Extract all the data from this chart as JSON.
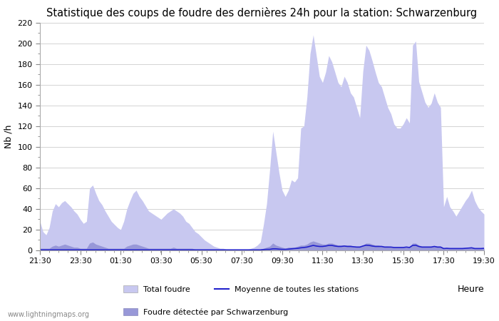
{
  "title": "Statistique des coups de foudre des dernières 24h pour la station: Schwarzenburg",
  "ylabel": "Nb /h",
  "xlabel_right": "Heure",
  "watermark": "www.lightningmaps.org",
  "ylim": [
    0,
    220
  ],
  "yticks_major": [
    0,
    20,
    40,
    60,
    80,
    100,
    120,
    140,
    160,
    180,
    200,
    220
  ],
  "xtick_labels": [
    "21:30",
    "23:30",
    "01:30",
    "03:30",
    "05:30",
    "07:30",
    "09:30",
    "11:30",
    "13:30",
    "15:30",
    "17:30",
    "19:30"
  ],
  "color_total": "#c8c8f0",
  "color_station": "#9898d8",
  "color_moyenne": "#2222cc",
  "legend_total": "Total foudre",
  "legend_moyenne": "Moyenne de toutes les stations",
  "legend_station": "Foudre détectée par Schwarzenburg",
  "title_fontsize": 10.5,
  "n_points": 144,
  "total_foudre": [
    28,
    18,
    15,
    22,
    38,
    45,
    42,
    46,
    48,
    45,
    42,
    38,
    35,
    30,
    26,
    28,
    60,
    63,
    55,
    48,
    44,
    38,
    33,
    28,
    25,
    22,
    20,
    28,
    40,
    48,
    55,
    58,
    52,
    48,
    43,
    38,
    36,
    34,
    32,
    30,
    33,
    36,
    38,
    40,
    38,
    36,
    33,
    28,
    26,
    22,
    18,
    16,
    13,
    10,
    8,
    6,
    4,
    3,
    2,
    2,
    1,
    1,
    1,
    1,
    1,
    1,
    1,
    1,
    2,
    3,
    5,
    8,
    25,
    45,
    78,
    115,
    95,
    75,
    58,
    52,
    58,
    68,
    66,
    70,
    118,
    120,
    148,
    190,
    208,
    188,
    168,
    162,
    172,
    188,
    182,
    172,
    162,
    158,
    168,
    162,
    152,
    148,
    138,
    128,
    173,
    198,
    193,
    183,
    172,
    162,
    158,
    148,
    138,
    132,
    122,
    118,
    118,
    122,
    128,
    123,
    198,
    202,
    163,
    153,
    143,
    138,
    142,
    152,
    143,
    138,
    42,
    52,
    42,
    38,
    33,
    38,
    43,
    48,
    52,
    58,
    48,
    42,
    38,
    35
  ],
  "station_foudre": [
    2,
    2,
    2,
    2,
    4,
    5,
    4,
    5,
    6,
    5,
    4,
    3,
    3,
    2,
    2,
    2,
    7,
    8,
    6,
    5,
    4,
    3,
    2,
    2,
    2,
    2,
    2,
    2,
    4,
    5,
    6,
    6,
    5,
    4,
    3,
    2,
    2,
    2,
    2,
    2,
    2,
    2,
    2,
    3,
    2,
    2,
    2,
    2,
    2,
    2,
    1,
    1,
    1,
    1,
    1,
    0,
    0,
    0,
    0,
    0,
    0,
    0,
    0,
    0,
    0,
    0,
    0,
    0,
    0,
    0,
    0,
    1,
    2,
    3,
    4,
    7,
    5,
    4,
    3,
    2,
    3,
    3,
    3,
    4,
    5,
    5,
    6,
    8,
    9,
    8,
    7,
    6,
    6,
    7,
    7,
    6,
    5,
    5,
    5,
    5,
    5,
    4,
    4,
    4,
    5,
    7,
    7,
    6,
    5,
    5,
    4,
    4,
    4,
    3,
    3,
    3,
    3,
    3,
    3,
    3,
    7,
    7,
    5,
    4,
    4,
    4,
    4,
    4,
    4,
    4,
    2,
    2,
    2,
    2,
    2,
    2,
    2,
    2,
    2,
    3,
    2,
    2,
    2,
    2
  ],
  "moyenne": [
    0.5,
    0.5,
    0.5,
    0.5,
    0.5,
    0.5,
    0.5,
    0.5,
    0.5,
    0.5,
    0.5,
    0.5,
    0.5,
    0.5,
    0.5,
    0.5,
    0.5,
    0.5,
    0.5,
    0.5,
    0.5,
    0.5,
    0.5,
    0.5,
    0.5,
    0.5,
    0.5,
    0.5,
    0.5,
    0.5,
    0.5,
    0.5,
    0.5,
    0.5,
    0.5,
    0.5,
    0.5,
    0.5,
    0.5,
    0.5,
    0.5,
    0.5,
    0.5,
    0.5,
    0.5,
    0.5,
    0.5,
    0.5,
    0.5,
    0.5,
    0.5,
    0.5,
    0.5,
    0.5,
    0.5,
    0.5,
    0.5,
    0.5,
    0.5,
    0.5,
    0.5,
    0.5,
    0.5,
    0.5,
    0.5,
    0.5,
    0.5,
    0.5,
    0.5,
    0.5,
    0.5,
    0.5,
    0.8,
    1.0,
    1.0,
    1.5,
    1.5,
    1.2,
    1.0,
    1.0,
    1.2,
    1.5,
    1.8,
    2.0,
    2.5,
    2.8,
    3.2,
    4.0,
    4.8,
    4.2,
    3.8,
    3.8,
    4.2,
    4.8,
    4.8,
    4.2,
    3.8,
    3.8,
    4.2,
    3.8,
    3.8,
    3.5,
    3.2,
    3.2,
    4.2,
    5.0,
    4.8,
    4.2,
    3.8,
    3.8,
    3.8,
    3.2,
    3.2,
    3.2,
    2.8,
    2.8,
    2.8,
    2.8,
    3.2,
    2.8,
    4.8,
    5.0,
    3.8,
    3.2,
    3.2,
    3.2,
    3.2,
    3.8,
    3.2,
    3.2,
    1.8,
    2.0,
    1.8,
    1.8,
    1.8,
    1.8,
    1.8,
    2.0,
    2.2,
    2.5,
    1.8,
    1.8,
    1.8,
    2.0
  ]
}
